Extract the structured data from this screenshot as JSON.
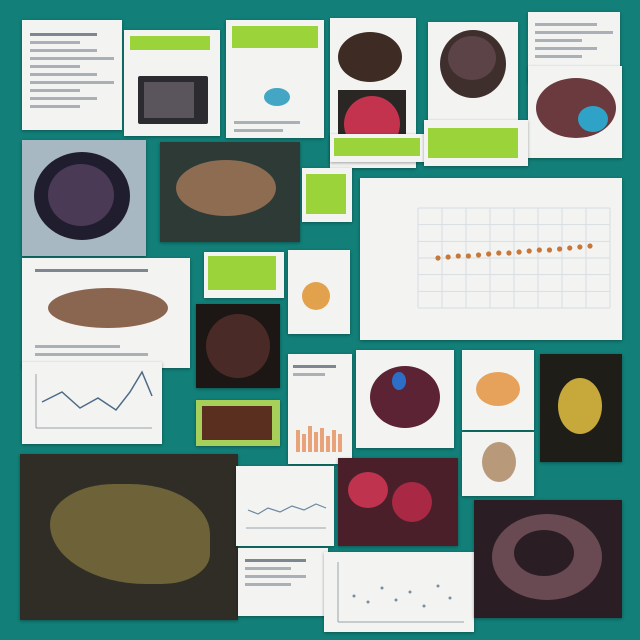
{
  "chart_data": {
    "type": "scatter",
    "x": [
      1,
      2,
      3,
      4,
      5,
      6,
      7,
      8,
      9,
      10,
      11,
      12,
      13,
      14,
      15,
      16
    ],
    "y": [
      50,
      51,
      52,
      52,
      53,
      54,
      55,
      55,
      56,
      57,
      58,
      58,
      59,
      60,
      61,
      62
    ],
    "series_color": "#c8773a",
    "grid": true,
    "legend": "none"
  },
  "colors": {
    "background": "#127f78",
    "accent_lime": "#9bd33a",
    "card": "#f3f4f2"
  },
  "icons": [
    "gridline-chart",
    "line-chart",
    "bar-chart"
  ]
}
